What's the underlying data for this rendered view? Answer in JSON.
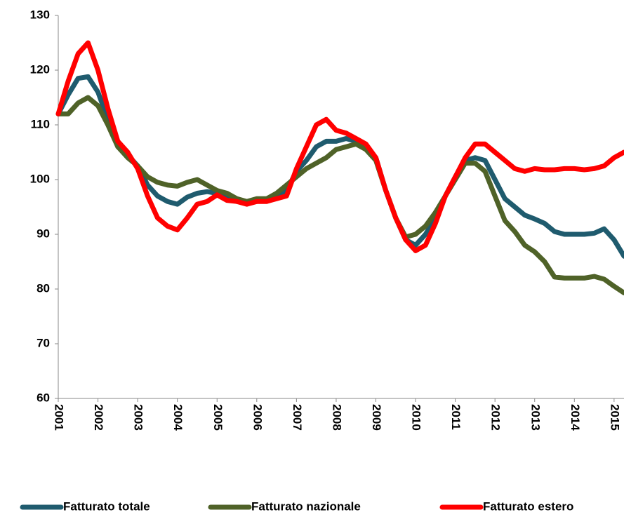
{
  "chart_data": {
    "type": "line",
    "x": [
      2001,
      2001.25,
      2001.5,
      2001.75,
      2002,
      2002.25,
      2002.5,
      2002.75,
      2003,
      2003.25,
      2003.5,
      2003.75,
      2004,
      2004.25,
      2004.5,
      2004.75,
      2005,
      2005.25,
      2005.5,
      2005.75,
      2006,
      2006.25,
      2006.5,
      2006.75,
      2007,
      2007.25,
      2007.5,
      2007.75,
      2008,
      2008.25,
      2008.5,
      2008.75,
      2009,
      2009.25,
      2009.5,
      2009.75,
      2010,
      2010.25,
      2010.5,
      2010.75,
      2011,
      2011.25,
      2011.5,
      2011.75,
      2012,
      2012.25,
      2012.5,
      2012.75,
      2013,
      2013.25,
      2013.5,
      2013.75,
      2014,
      2014.25,
      2014.5,
      2014.75,
      2015,
      2015.25
    ],
    "series": [
      {
        "name": "Fatturato totale",
        "color": "#1f5b6e",
        "values": [
          112,
          115.5,
          118.5,
          118.8,
          116,
          111,
          106,
          104.5,
          102.5,
          99,
          97,
          96,
          95.5,
          96.8,
          97.5,
          97.8,
          97.5,
          96.5,
          96,
          96,
          96,
          96.5,
          97,
          98,
          101.5,
          103.5,
          106,
          107,
          107,
          107.5,
          107,
          106,
          104,
          98,
          93,
          89,
          88,
          90,
          93,
          97,
          100.5,
          103.5,
          104,
          103.5,
          100,
          96.5,
          95,
          93.5,
          92.8,
          92,
          90.5,
          90,
          90,
          90,
          90.2,
          91,
          89,
          86
        ]
      },
      {
        "name": "Fatturato nazionale",
        "color": "#4f6228",
        "values": [
          112,
          112,
          114,
          115,
          113.5,
          110,
          106,
          104,
          102.5,
          100.5,
          99.5,
          99,
          98.8,
          99.5,
          100,
          99,
          98,
          97.5,
          96.5,
          96,
          96.5,
          96.5,
          97.5,
          99,
          100.5,
          102,
          103,
          104,
          105.5,
          106,
          106.5,
          105.5,
          103.5,
          98,
          93,
          89.5,
          90,
          91.5,
          94,
          97,
          100,
          103,
          103,
          101.5,
          97,
          92.5,
          90.5,
          88,
          86.8,
          85,
          82.2,
          82,
          82,
          82,
          82.3,
          81.8,
          80.5,
          79.3
        ]
      },
      {
        "name": "Fatturato estero",
        "color": "#ff0000",
        "values": [
          112,
          118,
          123,
          125,
          120,
          113,
          107,
          105,
          102,
          97,
          93,
          91.5,
          90.8,
          93,
          95.5,
          96,
          97.2,
          96.2,
          96,
          95.5,
          96,
          96,
          96.5,
          97,
          102,
          106,
          110,
          111,
          109,
          108.5,
          107.5,
          106.5,
          104,
          98,
          93,
          89,
          87,
          88,
          92,
          97,
          100.5,
          104,
          106.5,
          106.5,
          105,
          103.5,
          102,
          101.5,
          102,
          101.8,
          101.8,
          102,
          102,
          101.8,
          102,
          102.5,
          104,
          105
        ]
      }
    ],
    "xlim": [
      2001,
      2015.25
    ],
    "xticks": [
      2001,
      2002,
      2003,
      2004,
      2005,
      2006,
      2007,
      2008,
      2009,
      2010,
      2011,
      2012,
      2013,
      2014,
      2015
    ],
    "ylim": [
      60,
      130
    ],
    "yticks": [
      60,
      70,
      80,
      90,
      100,
      110,
      120,
      130
    ],
    "grid": false,
    "legend": "bottom"
  }
}
